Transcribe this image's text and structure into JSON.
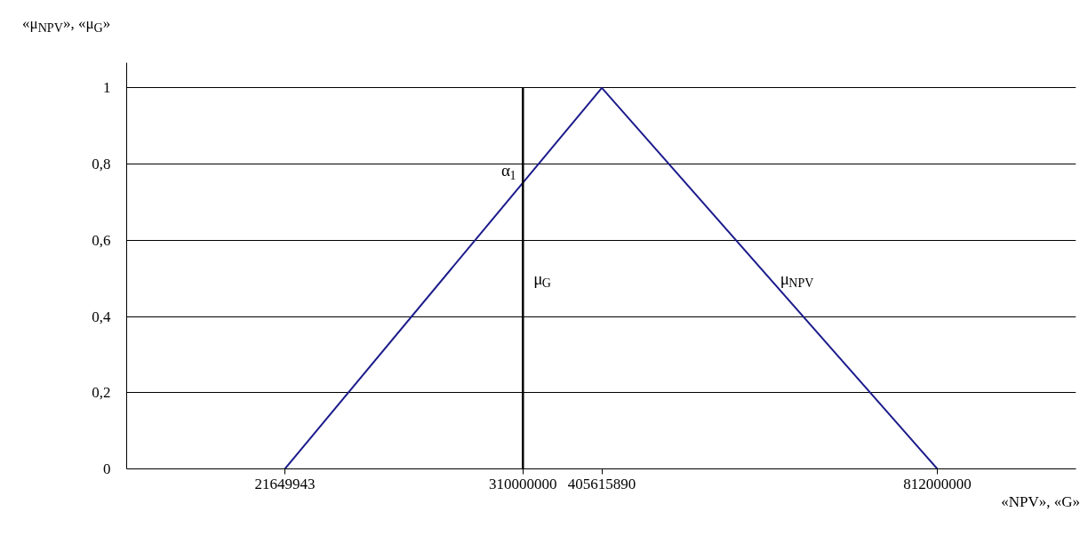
{
  "chart_data": {
    "type": "line",
    "ylabel": "«μ$_{NPV}$», «μ$_{G}$»",
    "xlabel": "«NPV», «G»",
    "series": [
      {
        "name": "μ$_{NPV}$",
        "color": "#1c1c8c",
        "x": [
          21649943,
          405615890,
          812000000
        ],
        "values": [
          0,
          1,
          0
        ]
      },
      {
        "name": "μ$_{G}$",
        "color": "#000000",
        "x": [
          310000000,
          310000000
        ],
        "values": [
          0,
          1
        ]
      }
    ],
    "annotations": [
      "α$_{1}$"
    ],
    "xlim": [
      -170000000,
      980000000
    ],
    "xticks": [
      21649943,
      310000000,
      405615890,
      812000000
    ],
    "ylim": [
      0,
      1.066
    ],
    "yticks": [
      0,
      {
        "value": 0.2,
        "label": "0,2"
      },
      {
        "value": 0.4,
        "label": "0,4"
      },
      {
        "value": 0.6,
        "label": "0,6"
      },
      {
        "value": 0.8,
        "label": "0,8"
      },
      1
    ],
    "grid": "y",
    "legend": false,
    "marker": "none",
    "line_style": "solid"
  }
}
